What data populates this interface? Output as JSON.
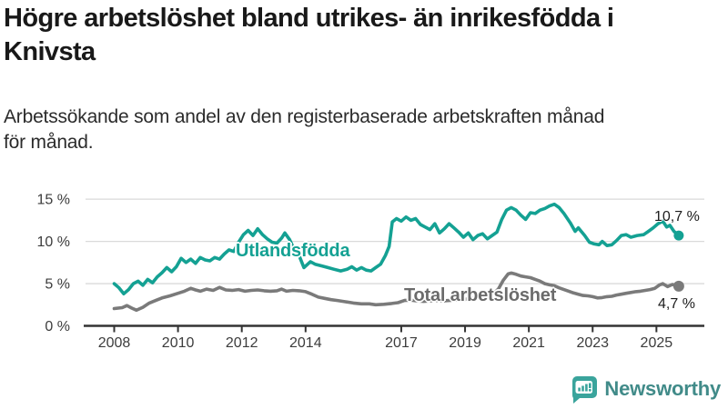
{
  "page": {
    "title": "Högre arbetslöshet bland utrikes- än inrikesfödda i\nKnivsta",
    "subtitle": "Arbetssökande som andel av den registerbaserade arbetskraften månad\nför månad."
  },
  "branding": {
    "logo_text": "Newsworthy",
    "logo_icon": "bar-chart-speech-bubble-icon",
    "logo_bubble_color": "#3aa49c",
    "logo_text_color": "#418b89"
  },
  "chart_data": {
    "type": "line",
    "title": "Högre arbetslöshet bland utrikes- än inrikesfödda i Knivsta",
    "subtitle": "Arbetssökande som andel av den registerbaserade arbetskraften månad för månad.",
    "xlabel": "",
    "ylabel": "",
    "x_range": [
      2008.0,
      2025.7
    ],
    "ylim": [
      0,
      15
    ],
    "grid": "horizontal",
    "legend_position": "inline-labels",
    "colors": {
      "gridline": "#dadada",
      "axis": "#333333",
      "tick_text": "#3c3c3c",
      "accent_teal": "#14a193",
      "accent_gray": "#7a7a7a"
    },
    "y_ticks": [
      {
        "value": 0,
        "label": "0 %"
      },
      {
        "value": 5,
        "label": "5 %"
      },
      {
        "value": 10,
        "label": "10 %"
      },
      {
        "value": 15,
        "label": "15 %"
      }
    ],
    "x_ticks": [
      {
        "value": 2008,
        "label": "2008"
      },
      {
        "value": 2010,
        "label": "2010"
      },
      {
        "value": 2012,
        "label": "2012"
      },
      {
        "value": 2014,
        "label": "2014"
      },
      {
        "value": 2017,
        "label": "2017"
      },
      {
        "value": 2019,
        "label": "2019"
      },
      {
        "value": 2021,
        "label": "2021"
      },
      {
        "value": 2023,
        "label": "2023"
      },
      {
        "value": 2025,
        "label": "2025"
      }
    ],
    "series": [
      {
        "name": "Utlandsfödda",
        "color": "#14a193",
        "end_value": 10.7,
        "end_label": "10,7 %",
        "points": [
          [
            2008.0,
            5.0
          ],
          [
            2008.15,
            4.5
          ],
          [
            2008.3,
            3.8
          ],
          [
            2008.45,
            4.3
          ],
          [
            2008.6,
            5.0
          ],
          [
            2008.75,
            5.3
          ],
          [
            2008.9,
            4.8
          ],
          [
            2009.05,
            5.5
          ],
          [
            2009.2,
            5.1
          ],
          [
            2009.35,
            5.8
          ],
          [
            2009.5,
            6.3
          ],
          [
            2009.65,
            6.9
          ],
          [
            2009.8,
            6.4
          ],
          [
            2009.95,
            7.0
          ],
          [
            2010.1,
            8.0
          ],
          [
            2010.25,
            7.5
          ],
          [
            2010.4,
            7.9
          ],
          [
            2010.55,
            7.4
          ],
          [
            2010.7,
            8.1
          ],
          [
            2010.85,
            7.8
          ],
          [
            2011.0,
            7.7
          ],
          [
            2011.15,
            8.1
          ],
          [
            2011.3,
            7.9
          ],
          [
            2011.45,
            8.5
          ],
          [
            2011.6,
            9.0
          ],
          [
            2011.75,
            8.8
          ],
          [
            2011.9,
            9.9
          ],
          [
            2012.05,
            10.8
          ],
          [
            2012.2,
            11.3
          ],
          [
            2012.35,
            10.7
          ],
          [
            2012.5,
            11.5
          ],
          [
            2012.65,
            10.8
          ],
          [
            2012.8,
            10.3
          ],
          [
            2012.95,
            9.9
          ],
          [
            2013.1,
            9.8
          ],
          [
            2013.25,
            10.4
          ],
          [
            2013.35,
            11.0
          ],
          [
            2013.5,
            10.2
          ],
          [
            2013.65,
            9.0
          ],
          [
            2013.8,
            8.3
          ],
          [
            2013.95,
            6.9
          ],
          [
            2014.15,
            7.6
          ],
          [
            2014.3,
            7.3
          ],
          [
            2014.5,
            7.1
          ],
          [
            2014.7,
            6.9
          ],
          [
            2014.9,
            6.7
          ],
          [
            2015.1,
            6.5
          ],
          [
            2015.3,
            6.7
          ],
          [
            2015.45,
            7.0
          ],
          [
            2015.6,
            6.6
          ],
          [
            2015.75,
            6.9
          ],
          [
            2015.9,
            6.6
          ],
          [
            2016.05,
            6.5
          ],
          [
            2016.2,
            6.9
          ],
          [
            2016.35,
            7.3
          ],
          [
            2016.5,
            8.3
          ],
          [
            2016.62,
            9.4
          ],
          [
            2016.72,
            12.3
          ],
          [
            2016.85,
            12.7
          ],
          [
            2017.0,
            12.4
          ],
          [
            2017.15,
            12.9
          ],
          [
            2017.3,
            12.5
          ],
          [
            2017.45,
            12.7
          ],
          [
            2017.6,
            12.0
          ],
          [
            2017.75,
            11.7
          ],
          [
            2017.9,
            11.4
          ],
          [
            2018.05,
            12.1
          ],
          [
            2018.2,
            11.0
          ],
          [
            2018.35,
            11.5
          ],
          [
            2018.5,
            12.1
          ],
          [
            2018.65,
            11.6
          ],
          [
            2018.8,
            11.1
          ],
          [
            2018.95,
            10.5
          ],
          [
            2019.1,
            11.0
          ],
          [
            2019.25,
            10.2
          ],
          [
            2019.4,
            10.7
          ],
          [
            2019.55,
            10.9
          ],
          [
            2019.7,
            10.3
          ],
          [
            2019.85,
            10.7
          ],
          [
            2020.0,
            11.1
          ],
          [
            2020.15,
            12.6
          ],
          [
            2020.3,
            13.7
          ],
          [
            2020.45,
            14.0
          ],
          [
            2020.6,
            13.7
          ],
          [
            2020.75,
            13.1
          ],
          [
            2020.9,
            12.6
          ],
          [
            2021.05,
            13.4
          ],
          [
            2021.2,
            13.3
          ],
          [
            2021.35,
            13.7
          ],
          [
            2021.5,
            13.9
          ],
          [
            2021.65,
            14.2
          ],
          [
            2021.8,
            14.4
          ],
          [
            2021.95,
            14.0
          ],
          [
            2022.1,
            13.3
          ],
          [
            2022.3,
            12.2
          ],
          [
            2022.45,
            11.2
          ],
          [
            2022.55,
            11.6
          ],
          [
            2022.75,
            10.7
          ],
          [
            2022.9,
            9.9
          ],
          [
            2023.05,
            9.7
          ],
          [
            2023.2,
            9.6
          ],
          [
            2023.3,
            10.0
          ],
          [
            2023.45,
            9.5
          ],
          [
            2023.6,
            9.6
          ],
          [
            2023.75,
            10.1
          ],
          [
            2023.9,
            10.7
          ],
          [
            2024.05,
            10.8
          ],
          [
            2024.2,
            10.5
          ],
          [
            2024.4,
            10.7
          ],
          [
            2024.6,
            10.8
          ],
          [
            2024.75,
            11.2
          ],
          [
            2024.9,
            11.6
          ],
          [
            2025.05,
            12.1
          ],
          [
            2025.2,
            12.4
          ],
          [
            2025.32,
            11.7
          ],
          [
            2025.42,
            11.9
          ],
          [
            2025.55,
            11.2
          ],
          [
            2025.7,
            10.7
          ]
        ]
      },
      {
        "name": "Total arbetslöshet",
        "color": "#7a7a7a",
        "label_color": "#6b6b6b",
        "end_value": 4.7,
        "end_label": "4,7 %",
        "points": [
          [
            2008.0,
            2.05
          ],
          [
            2008.25,
            2.15
          ],
          [
            2008.4,
            2.4
          ],
          [
            2008.55,
            2.1
          ],
          [
            2008.7,
            1.85
          ],
          [
            2008.9,
            2.2
          ],
          [
            2009.1,
            2.7
          ],
          [
            2009.3,
            3.0
          ],
          [
            2009.5,
            3.3
          ],
          [
            2009.75,
            3.55
          ],
          [
            2010.0,
            3.85
          ],
          [
            2010.2,
            4.1
          ],
          [
            2010.4,
            4.45
          ],
          [
            2010.55,
            4.25
          ],
          [
            2010.7,
            4.1
          ],
          [
            2010.9,
            4.35
          ],
          [
            2011.1,
            4.2
          ],
          [
            2011.3,
            4.55
          ],
          [
            2011.5,
            4.25
          ],
          [
            2011.7,
            4.2
          ],
          [
            2011.9,
            4.3
          ],
          [
            2012.1,
            4.1
          ],
          [
            2012.3,
            4.2
          ],
          [
            2012.5,
            4.25
          ],
          [
            2012.7,
            4.15
          ],
          [
            2012.9,
            4.1
          ],
          [
            2013.1,
            4.15
          ],
          [
            2013.25,
            4.35
          ],
          [
            2013.4,
            4.1
          ],
          [
            2013.6,
            4.2
          ],
          [
            2013.8,
            4.15
          ],
          [
            2014.0,
            4.05
          ],
          [
            2014.2,
            3.75
          ],
          [
            2014.4,
            3.4
          ],
          [
            2014.6,
            3.25
          ],
          [
            2014.8,
            3.1
          ],
          [
            2015.0,
            3.0
          ],
          [
            2015.25,
            2.85
          ],
          [
            2015.5,
            2.7
          ],
          [
            2015.75,
            2.6
          ],
          [
            2016.0,
            2.6
          ],
          [
            2016.2,
            2.5
          ],
          [
            2016.45,
            2.55
          ],
          [
            2016.7,
            2.65
          ],
          [
            2016.9,
            2.75
          ],
          [
            2017.1,
            3.0
          ],
          [
            2017.3,
            3.05
          ],
          [
            2017.5,
            2.95
          ],
          [
            2017.7,
            2.9
          ],
          [
            2017.9,
            2.95
          ],
          [
            2018.1,
            3.0
          ],
          [
            2018.3,
            2.95
          ],
          [
            2018.5,
            3.0
          ],
          [
            2018.7,
            3.05
          ],
          [
            2018.9,
            3.1
          ],
          [
            2019.1,
            3.2
          ],
          [
            2019.3,
            3.3
          ],
          [
            2019.5,
            3.35
          ],
          [
            2019.7,
            3.5
          ],
          [
            2019.9,
            3.8
          ],
          [
            2020.05,
            4.4
          ],
          [
            2020.2,
            5.4
          ],
          [
            2020.35,
            6.15
          ],
          [
            2020.45,
            6.25
          ],
          [
            2020.6,
            6.1
          ],
          [
            2020.75,
            5.9
          ],
          [
            2020.9,
            5.8
          ],
          [
            2021.05,
            5.7
          ],
          [
            2021.2,
            5.5
          ],
          [
            2021.35,
            5.3
          ],
          [
            2021.5,
            5.0
          ],
          [
            2021.65,
            4.85
          ],
          [
            2021.8,
            4.75
          ],
          [
            2021.95,
            4.5
          ],
          [
            2022.1,
            4.3
          ],
          [
            2022.25,
            4.1
          ],
          [
            2022.4,
            3.9
          ],
          [
            2022.55,
            3.75
          ],
          [
            2022.7,
            3.6
          ],
          [
            2022.85,
            3.55
          ],
          [
            2023.0,
            3.45
          ],
          [
            2023.15,
            3.3
          ],
          [
            2023.3,
            3.35
          ],
          [
            2023.45,
            3.45
          ],
          [
            2023.6,
            3.5
          ],
          [
            2023.75,
            3.65
          ],
          [
            2023.9,
            3.75
          ],
          [
            2024.05,
            3.85
          ],
          [
            2024.2,
            3.95
          ],
          [
            2024.35,
            4.05
          ],
          [
            2024.5,
            4.1
          ],
          [
            2024.65,
            4.2
          ],
          [
            2024.8,
            4.3
          ],
          [
            2024.95,
            4.45
          ],
          [
            2025.1,
            4.85
          ],
          [
            2025.2,
            5.0
          ],
          [
            2025.35,
            4.65
          ],
          [
            2025.5,
            4.9
          ],
          [
            2025.7,
            4.7
          ]
        ]
      }
    ]
  }
}
